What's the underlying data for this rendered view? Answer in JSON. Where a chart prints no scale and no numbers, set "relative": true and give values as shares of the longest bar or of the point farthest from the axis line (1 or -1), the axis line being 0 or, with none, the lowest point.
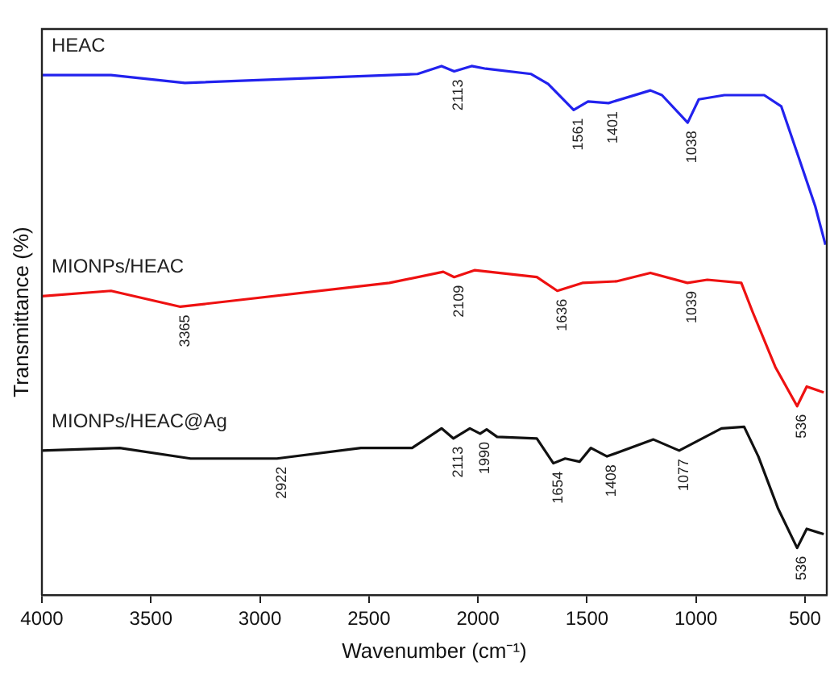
{
  "chart_data": {
    "type": "line",
    "xlabel": "Wavenumber (cm⁻¹)",
    "ylabel": "Transmittance (%)",
    "relative": true,
    "xlim": [
      4000,
      400
    ],
    "xticks": [
      4000,
      3500,
      3000,
      2500,
      2000,
      1500,
      1000,
      500
    ],
    "grid": false,
    "legend": false,
    "marker": "none",
    "line_style": "solid",
    "series": [
      {
        "name": "HEAC",
        "color": "#2222ee",
        "x": [
          4000,
          3683,
          3344,
          2277,
          2167,
          2109,
          2029,
          1964,
          1756,
          1678,
          1561,
          1495,
          1401,
          1209,
          1156,
          1038,
          987,
          870,
          687,
          609,
          531,
          453,
          406
        ],
        "values": [
          0.983,
          0.983,
          0.968,
          0.985,
          1,
          0.99,
          1,
          0.995,
          0.985,
          0.966,
          0.917,
          0.933,
          0.93,
          0.954,
          0.945,
          0.893,
          0.937,
          0.945,
          0.945,
          0.924,
          0.83,
          0.735,
          0.662
        ]
      },
      {
        "name": "MIONPs/HEAC",
        "color": "#ee1111",
        "x": [
          4000,
          3683,
          3365,
          2406,
          2159,
          2109,
          2016,
          1730,
          1636,
          1521,
          1365,
          1209,
          1039,
          948,
          792,
          740,
          636,
          536,
          492,
          414
        ],
        "values": [
          0.565,
          0.575,
          0.545,
          0.59,
          0.611,
          0.601,
          0.614,
          0.601,
          0.575,
          0.59,
          0.593,
          0.609,
          0.59,
          0.596,
          0.59,
          0.535,
          0.431,
          0.357,
          0.394,
          0.383
        ]
      },
      {
        "name": "MIONPs/HEAC@Ag",
        "color": "#111111",
        "x": [
          4000,
          3643,
          3318,
          2922,
          2537,
          2302,
          2167,
          2113,
          2037,
          1990,
          1960,
          1912,
          1730,
          1654,
          1600,
          1534,
          1482,
          1408,
          1195,
          1077,
          883,
          779,
          714,
          623,
          536,
          492,
          414
        ],
        "values": [
          0.273,
          0.278,
          0.258,
          0.258,
          0.278,
          0.278,
          0.315,
          0.296,
          0.315,
          0.305,
          0.313,
          0.299,
          0.296,
          0.249,
          0.258,
          0.252,
          0.278,
          0.262,
          0.294,
          0.273,
          0.315,
          0.318,
          0.262,
          0.163,
          0.089,
          0.125,
          0.115
        ]
      }
    ],
    "annotations": [
      {
        "text": "2113",
        "x": 2113,
        "y": 0.99
      },
      {
        "text": "1561",
        "x": 1561,
        "y": 0.917
      },
      {
        "text": "1401",
        "x": 1401,
        "y": 0.93
      },
      {
        "text": "1038",
        "x": 1038,
        "y": 0.893
      },
      {
        "text": "3365",
        "x": 3365,
        "y": 0.545
      },
      {
        "text": "2109",
        "x": 2109,
        "y": 0.601
      },
      {
        "text": "1636",
        "x": 1636,
        "y": 0.575
      },
      {
        "text": "1039",
        "x": 1039,
        "y": 0.59
      },
      {
        "text": "536",
        "x": 536,
        "y": 0.357
      },
      {
        "text": "2922",
        "x": 2922,
        "y": 0.258
      },
      {
        "text": "2113",
        "x": 2113,
        "y": 0.296
      },
      {
        "text": "1990",
        "x": 1990,
        "y": 0.305
      },
      {
        "text": "1654",
        "x": 1654,
        "y": 0.249
      },
      {
        "text": "1408",
        "x": 1408,
        "y": 0.262
      },
      {
        "text": "1077",
        "x": 1077,
        "y": 0.273
      },
      {
        "text": "536",
        "x": 536,
        "y": 0.089
      }
    ]
  }
}
